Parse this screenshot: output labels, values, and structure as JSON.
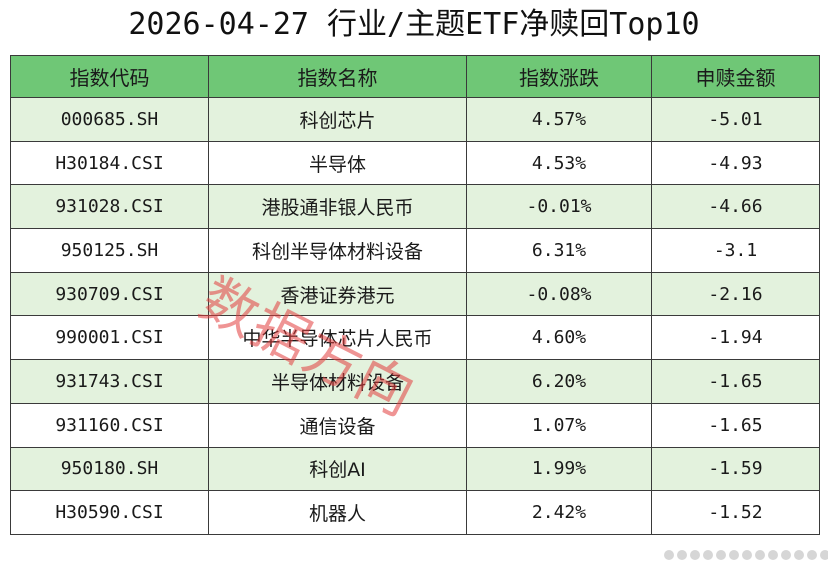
{
  "title": "2026-04-27 行业/主题ETF净赎回Top10",
  "watermark": "数据方向",
  "chart_data": {
    "type": "table",
    "title": "2026-04-27 行业/主题ETF净赎回Top10",
    "columns": [
      "指数代码",
      "指数名称",
      "指数涨跌",
      "申赎金额"
    ],
    "rows": [
      [
        "000685.SH",
        "科创芯片",
        "4.57%",
        "-5.01"
      ],
      [
        "H30184.CSI",
        "半导体",
        "4.53%",
        "-4.93"
      ],
      [
        "931028.CSI",
        "港股通非银人民币",
        "-0.01%",
        "-4.66"
      ],
      [
        "950125.SH",
        "科创半导体材料设备",
        "6.31%",
        "-3.1"
      ],
      [
        "930709.CSI",
        "香港证券港元",
        "-0.08%",
        "-2.16"
      ],
      [
        "990001.CSI",
        "中华半导体芯片人民币",
        "4.60%",
        "-1.94"
      ],
      [
        "931743.CSI",
        "半导体材料设备",
        "6.20%",
        "-1.65"
      ],
      [
        "931160.CSI",
        "通信设备",
        "1.07%",
        "-1.65"
      ],
      [
        "950180.SH",
        "科创AI",
        "1.99%",
        "-1.59"
      ],
      [
        "H30590.CSI",
        "机器人",
        "2.42%",
        "-1.52"
      ]
    ]
  },
  "colors": {
    "header_bg": "#6fc776",
    "row_odd_bg": "#e3f2dd",
    "row_even_bg": "#ffffff",
    "watermark": "#e13c3c"
  },
  "icons": [
    "dots-icon"
  ]
}
